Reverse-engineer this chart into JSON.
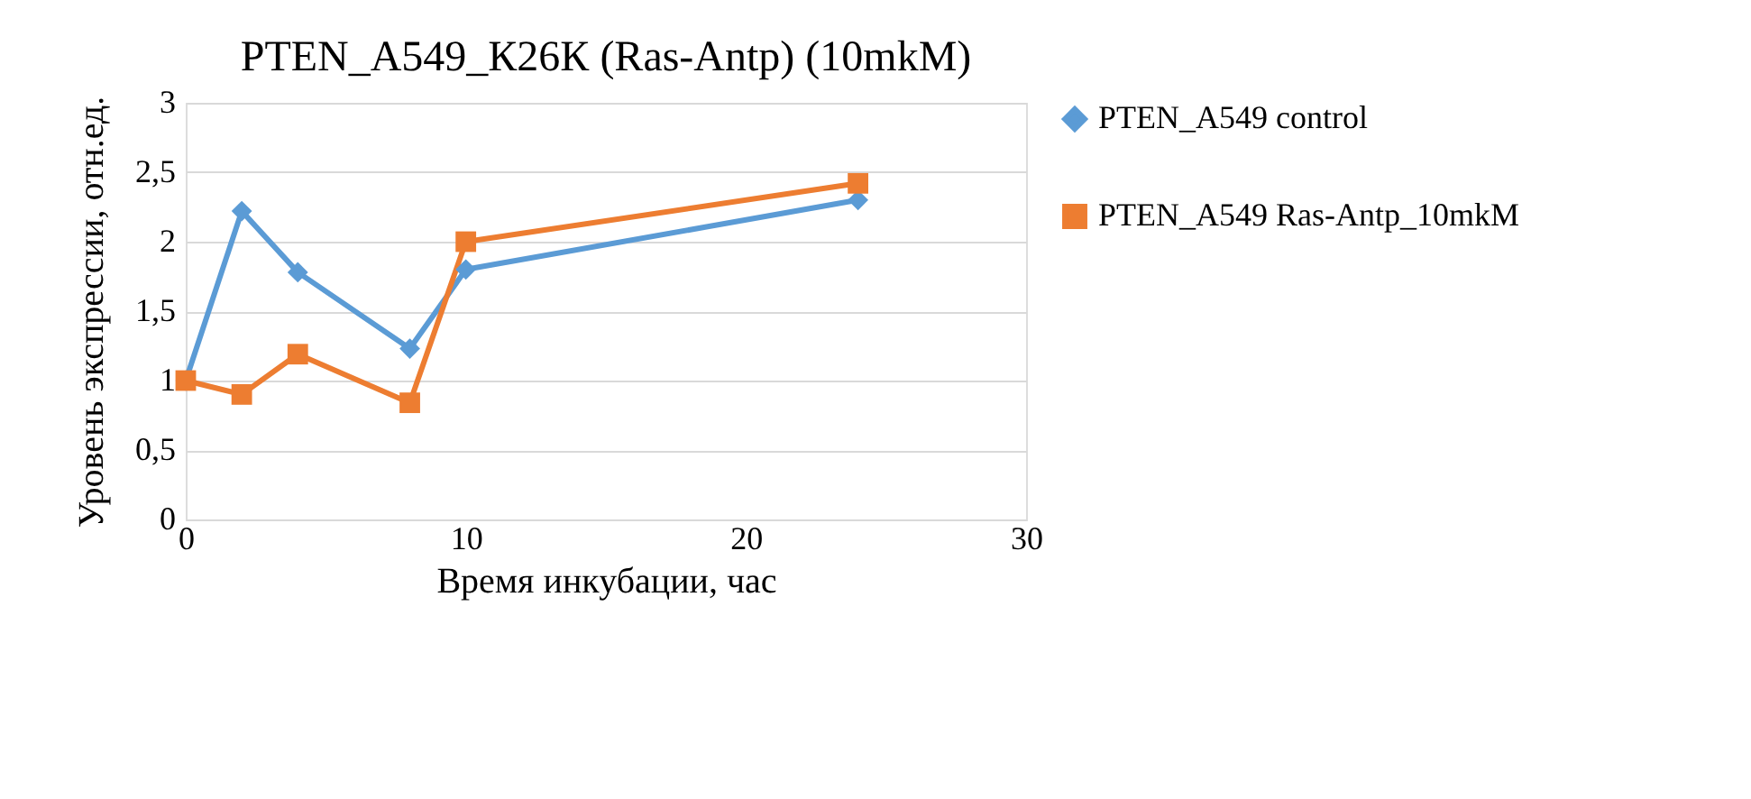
{
  "chart_data": {
    "type": "line",
    "title": "PTEN_A549_К26К (Ras-Antp) (10mkM)",
    "xlabel": "Время инкубации, час",
    "ylabel": "Уровень экспрессии, отн.ед.",
    "x": [
      0,
      2,
      4,
      8,
      10,
      24
    ],
    "series": [
      {
        "name": "PTEN_A549 control",
        "color": "#5b9bd5",
        "marker": "diamond",
        "values": [
          1.0,
          2.22,
          1.78,
          1.23,
          1.8,
          2.3
        ]
      },
      {
        "name": "PTEN_A549 Ras-Antp_10mkM",
        "color": "#ed7d31",
        "marker": "square",
        "values": [
          1.0,
          0.9,
          1.19,
          0.84,
          2.0,
          2.42
        ]
      }
    ],
    "xlim": [
      0,
      30
    ],
    "xticks": [
      0,
      10,
      20,
      30
    ],
    "ylim": [
      0,
      3
    ],
    "yticks": [
      0,
      {
        "value": 0.5,
        "label": "0,5"
      },
      1,
      {
        "value": 1.5,
        "label": "1,5"
      },
      2,
      {
        "value": 2.5,
        "label": "2,5"
      },
      3
    ],
    "grid": "y",
    "legend": "right",
    "line_style": "solid"
  }
}
